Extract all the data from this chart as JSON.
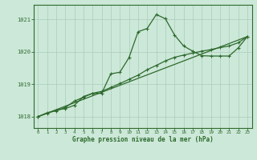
{
  "title": "",
  "xlabel": "Graphe pression niveau de la mer (hPa)",
  "background_color": "#cce8d8",
  "plot_bg_color": "#cce8d8",
  "line_color": "#2d6a2d",
  "grid_color": "#aaccbb",
  "border_color": "#2d6a2d",
  "xlim": [
    -0.5,
    23.5
  ],
  "ylim": [
    1017.65,
    1021.45
  ],
  "yticks": [
    1018,
    1019,
    1020,
    1021
  ],
  "xticks": [
    0,
    1,
    2,
    3,
    4,
    5,
    6,
    7,
    8,
    9,
    10,
    11,
    12,
    13,
    14,
    15,
    16,
    17,
    18,
    19,
    20,
    21,
    22,
    23
  ],
  "series1_x": [
    0,
    1,
    2,
    3,
    4,
    5,
    6,
    7,
    8,
    9,
    10,
    11,
    12,
    13,
    14,
    15,
    16,
    17,
    18,
    19,
    20,
    21,
    22,
    23
  ],
  "series1_y": [
    1018.0,
    1018.1,
    1018.2,
    1018.25,
    1018.35,
    1018.62,
    1018.72,
    1018.72,
    1019.32,
    1019.37,
    1019.82,
    1020.62,
    1020.72,
    1021.15,
    1021.02,
    1020.52,
    1020.18,
    1020.02,
    1019.88,
    1019.87,
    1019.87,
    1019.87,
    1020.12,
    1020.47
  ],
  "series2_x": [
    0,
    23
  ],
  "series2_y": [
    1018.0,
    1020.47
  ],
  "series3_x": [
    0,
    1,
    2,
    3,
    4,
    5,
    6,
    7,
    8,
    9,
    10,
    11,
    12,
    13,
    14,
    15,
    16,
    17,
    18,
    19,
    20,
    21,
    22,
    23
  ],
  "series3_y": [
    1018.0,
    1018.12,
    1018.18,
    1018.28,
    1018.48,
    1018.6,
    1018.72,
    1018.78,
    1018.9,
    1019.02,
    1019.15,
    1019.28,
    1019.45,
    1019.58,
    1019.72,
    1019.83,
    1019.9,
    1019.96,
    1020.02,
    1020.07,
    1020.13,
    1020.18,
    1020.28,
    1020.47
  ]
}
